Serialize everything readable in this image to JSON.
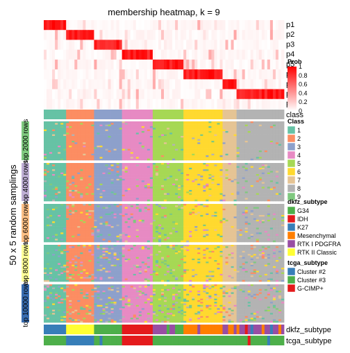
{
  "chart_data": {
    "type": "heatmap",
    "title": "membership heatmap, k = 9",
    "y_outer_label": "50 x 5 random samplings",
    "membership_rows": [
      "p1",
      "p2",
      "p3",
      "p4",
      "p5",
      "p6",
      "p7",
      "p8",
      "p9"
    ],
    "class_row_label": "class",
    "group_labels": [
      "top 2000 rows",
      "top 4000 rows",
      "top 6000 rows",
      "top 8000 rows",
      "top 10000 rows"
    ],
    "group_colors": [
      "#7FC97F",
      "#BEAED4",
      "#FDC086",
      "#FFFF99",
      "#386CB0"
    ],
    "column_classes": [
      1,
      1,
      1,
      1,
      1,
      1,
      1,
      1,
      2,
      2,
      2,
      2,
      2,
      2,
      2,
      2,
      2,
      2,
      3,
      3,
      3,
      3,
      3,
      3,
      3,
      3,
      3,
      3,
      4,
      4,
      4,
      4,
      4,
      4,
      4,
      4,
      4,
      4,
      4,
      5,
      5,
      5,
      5,
      5,
      5,
      5,
      5,
      5,
      5,
      5,
      6,
      6,
      6,
      6,
      6,
      6,
      6,
      6,
      6,
      6,
      6,
      6,
      6,
      6,
      7,
      7,
      7,
      7,
      7,
      8,
      8,
      8,
      8,
      8,
      8,
      8,
      8,
      8,
      8,
      8,
      8,
      8,
      8,
      8,
      8,
      8
    ],
    "bottom_tracks": [
      "dkfz_subtype",
      "tcga_subtype"
    ],
    "dkfz_subtype": [
      "K27",
      "K27",
      "K27",
      "K27",
      "K27",
      "K27",
      "K27",
      "K27",
      "RTK II Classic",
      "RTK II Classic",
      "RTK II Classic",
      "RTK II Classic",
      "RTK II Classic",
      "RTK II Classic",
      "RTK II Classic",
      "RTK II Classic",
      "RTK II Classic",
      "RTK II Classic",
      "G34",
      "G34",
      "G34",
      "G34",
      "G34",
      "G34",
      "G34",
      "G34",
      "G34",
      "G34",
      "IDH",
      "IDH",
      "IDH",
      "IDH",
      "IDH",
      "IDH",
      "IDH",
      "IDH",
      "IDH",
      "IDH",
      "IDH",
      "RTK I PDGFRA",
      "RTK I PDGFRA",
      "RTK I PDGFRA",
      "RTK I PDGFRA",
      "RTK I PDGFRA",
      "G34",
      "RTK I PDGFRA",
      "RTK I PDGFRA",
      "G34",
      "G34",
      "G34",
      "Mesenchymal",
      "Mesenchymal",
      "Mesenchymal",
      "Mesenchymal",
      "Mesenchymal",
      "RTK I PDGFRA",
      "Mesenchymal",
      "Mesenchymal",
      "Mesenchymal",
      "Mesenchymal",
      "Mesenchymal",
      "Mesenchymal",
      "Mesenchymal",
      "Mesenchymal",
      "RTK I PDGFRA",
      "RTK I PDGFRA",
      "Mesenchymal",
      "Mesenchymal",
      "RTK I PDGFRA",
      "Mesenchymal",
      "RTK I PDGFRA",
      "RTK I PDGFRA",
      "IDH",
      "RTK I PDGFRA",
      "K27",
      "RTK I PDGFRA",
      "RTK I PDGFRA",
      "RTK I PDGFRA",
      "Mesenchymal",
      "RTK I PDGFRA",
      "RTK I PDGFRA",
      "K27",
      "RTK I PDGFRA",
      "RTK I PDGFRA",
      "Mesenchymal",
      "RTK I PDGFRA"
    ],
    "tcga_subtype": [
      "Cluster #3",
      "Cluster #3",
      "Cluster #3",
      "Cluster #3",
      "Cluster #3",
      "Cluster #3",
      "Cluster #3",
      "Cluster #3",
      "Cluster #2",
      "Cluster #2",
      "Cluster #2",
      "Cluster #2",
      "Cluster #2",
      "Cluster #2",
      "Cluster #2",
      "Cluster #2",
      "Cluster #2",
      "Cluster #2",
      "Cluster #3",
      "Cluster #3",
      "Cluster #2",
      "Cluster #3",
      "Cluster #3",
      "Cluster #3",
      "Cluster #3",
      "Cluster #3",
      "Cluster #3",
      "Cluster #3",
      "G-CIMP+",
      "G-CIMP+",
      "G-CIMP+",
      "G-CIMP+",
      "G-CIMP+",
      "G-CIMP+",
      "G-CIMP+",
      "G-CIMP+",
      "G-CIMP+",
      "G-CIMP+",
      "G-CIMP+",
      "Cluster #3",
      "Cluster #3",
      "Cluster #3",
      "Cluster #3",
      "Cluster #3",
      "Cluster #3",
      "Cluster #3",
      "Cluster #3",
      "Cluster #3",
      "Cluster #3",
      "Cluster #3",
      "Cluster #3",
      "Cluster #3",
      "Cluster #3",
      "Cluster #3",
      "Cluster #3",
      "Cluster #3",
      "Cluster #3",
      "Cluster #3",
      "Cluster #3",
      "Cluster #3",
      "Cluster #3",
      "Cluster #3",
      "Cluster #3",
      "Cluster #3",
      "Cluster #3",
      "Cluster #3",
      "Cluster #3",
      "Cluster #3",
      "Cluster #3",
      "Cluster #3",
      "Cluster #3",
      "Cluster #3",
      "Cluster #3",
      "G-CIMP+",
      "Cluster #3",
      "Cluster #3",
      "Cluster #3",
      "Cluster #3",
      "Cluster #3",
      "Cluster #3",
      "Cluster #2",
      "Cluster #3",
      "Cluster #3",
      "Cluster #3",
      "Cluster #3",
      "Cluster #3"
    ],
    "legends": {
      "prob": {
        "title": "Prob",
        "ticks": [
          "1",
          "0.8",
          "0.6",
          "0.4",
          "0.2",
          "0"
        ],
        "color_low": "#FFFFFF",
        "color_high": "#FF0000"
      },
      "class": {
        "title": "Class",
        "items": [
          {
            "label": "1",
            "color": "#66C2A5"
          },
          {
            "label": "2",
            "color": "#FC8D62"
          },
          {
            "label": "3",
            "color": "#8DA0CB"
          },
          {
            "label": "4",
            "color": "#E78AC3"
          },
          {
            "label": "5",
            "color": "#A6D854"
          },
          {
            "label": "6",
            "color": "#FFD92F"
          },
          {
            "label": "7",
            "color": "#E5C494"
          },
          {
            "label": "8",
            "color": "#B3B3B3"
          },
          {
            "label": "9",
            "color": "#7FC97F"
          }
        ]
      },
      "dkfz_subtype": {
        "title": "dkfz_subtype",
        "items": [
          {
            "label": "G34",
            "color": "#4DAF4A"
          },
          {
            "label": "IDH",
            "color": "#E41A1C"
          },
          {
            "label": "K27",
            "color": "#377EB8"
          },
          {
            "label": "Mesenchymal",
            "color": "#FF7F00"
          },
          {
            "label": "RTK I PDGFRA",
            "color": "#984EA3"
          },
          {
            "label": "RTK II Classic",
            "color": "#FFFF33"
          }
        ]
      },
      "tcga_subtype": {
        "title": "tcga_subtype",
        "items": [
          {
            "label": "Cluster #2",
            "color": "#377EB8"
          },
          {
            "label": "Cluster #3",
            "color": "#4DAF4A"
          },
          {
            "label": "G-CIMP+",
            "color": "#E41A1C"
          }
        ]
      }
    }
  }
}
